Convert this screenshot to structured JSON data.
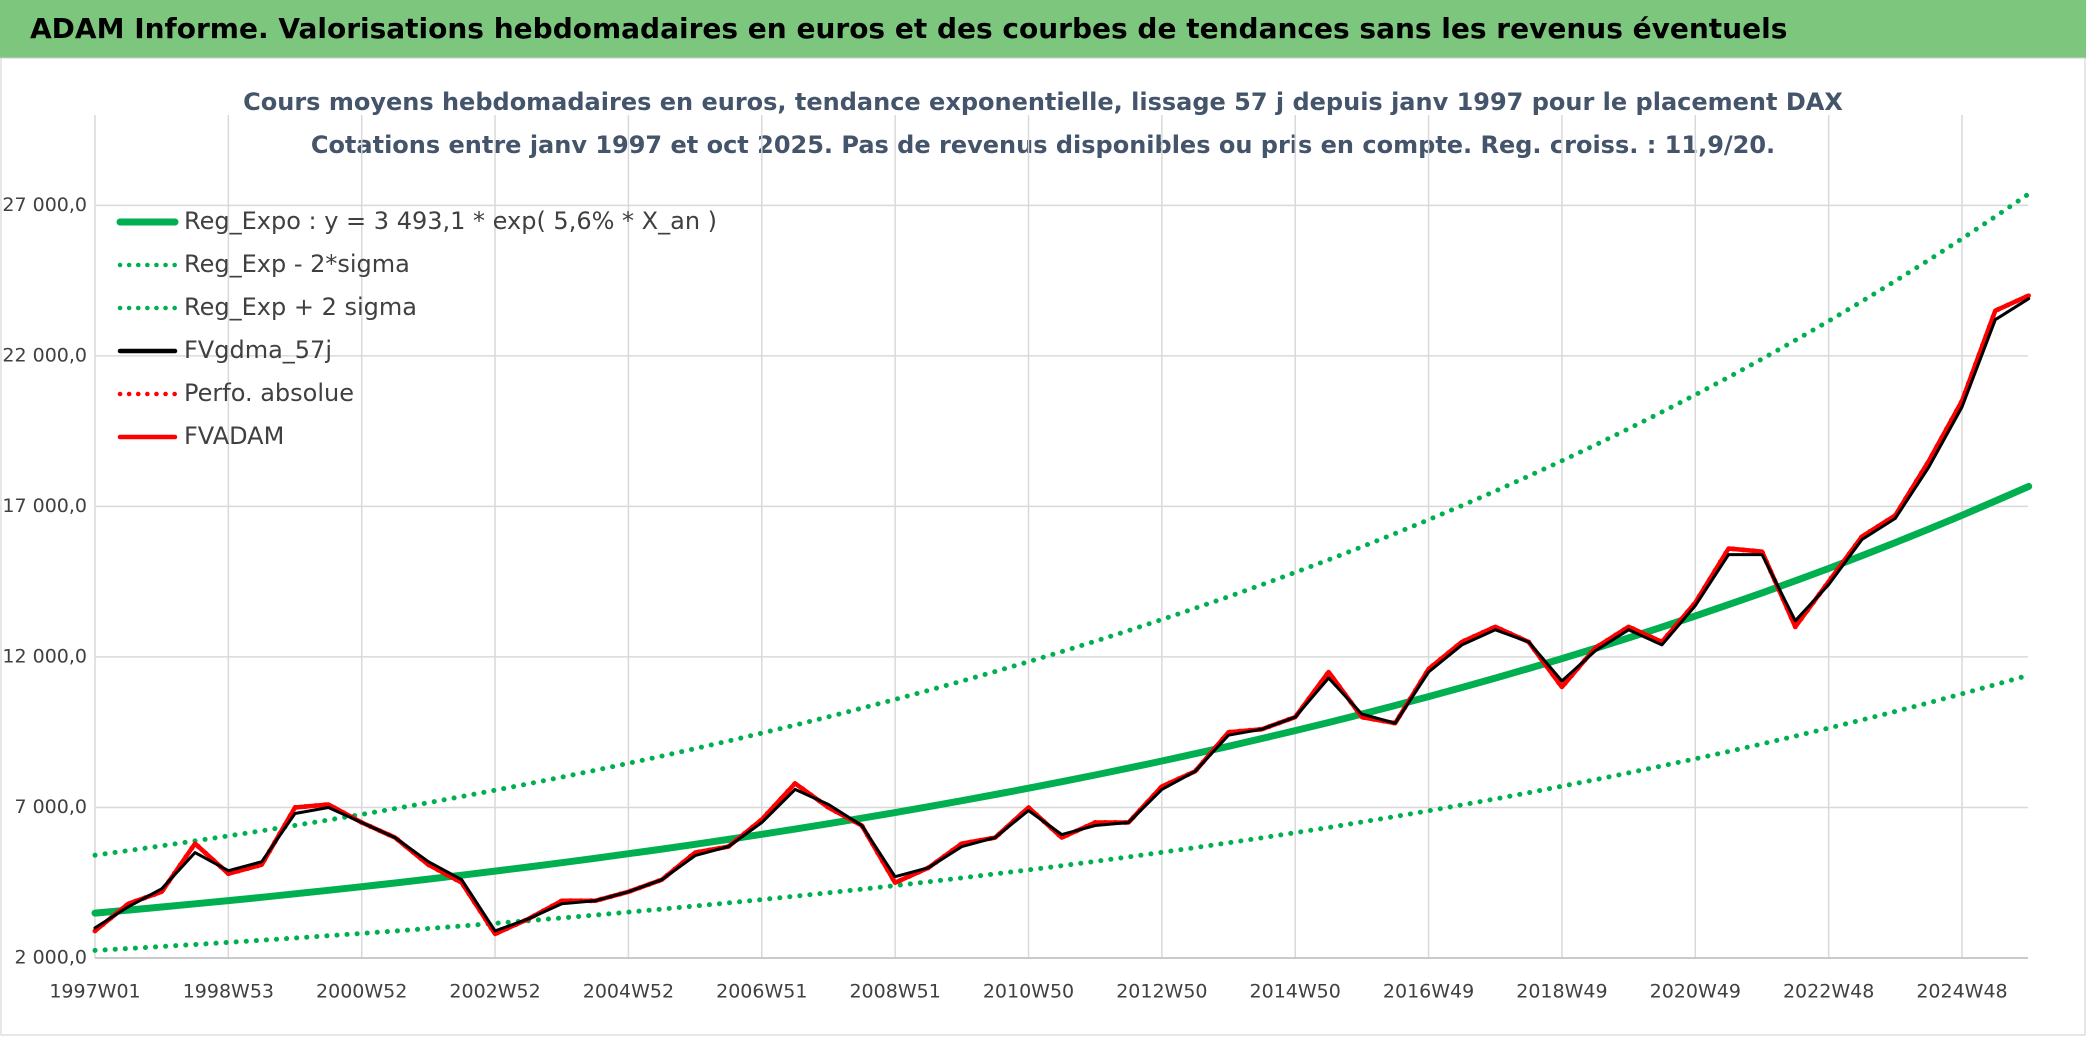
{
  "header": {
    "title": "ADAM Informe. Valorisations hebdomadaires en euros et des courbes de tendances sans les revenus éventuels"
  },
  "chart_data": {
    "type": "line",
    "title": "Cours moyens hebdomadaires en euros, tendance exponentielle, lissage 57 j depuis janv 1997 pour le placement DAX",
    "subtitle": "Cotations entre janv 1997 et oct 2025. Pas de revenus disponibles ou pris en compte. Reg. croiss. : 11,9/20.",
    "categories": [
      "1997W01",
      null,
      null,
      null,
      "1998W53",
      null,
      null,
      null,
      "2000W52",
      null,
      null,
      null,
      "2002W52",
      null,
      null,
      null,
      "2004W52",
      null,
      null,
      null,
      "2006W51",
      null,
      null,
      null,
      "2008W51",
      null,
      null,
      null,
      "2010W50",
      null,
      null,
      null,
      "2012W50",
      null,
      null,
      null,
      "2014W50",
      null,
      null,
      null,
      "2016W49",
      null,
      null,
      null,
      "2018W49",
      null,
      null,
      null,
      "2020W49",
      null,
      null,
      null,
      "2022W48",
      null,
      null,
      null,
      "2024W48",
      null,
      null
    ],
    "ylim": [
      2000,
      30000
    ],
    "yticks": [
      {
        "value": 2000,
        "label": "2 000,0"
      },
      {
        "value": 7000,
        "label": "7 000,0"
      },
      {
        "value": 12000,
        "label": "12 000,0"
      },
      {
        "value": 17000,
        "label": "17 000,0"
      },
      {
        "value": 22000,
        "label": "22 000,0"
      },
      {
        "value": 27000,
        "label": "27 000,0"
      }
    ],
    "grid": true,
    "legend": "upper-left",
    "series": [
      {
        "name": "Reg_Expo : y = 3 493,1 * exp( 5,6% *  X_an )",
        "color": "#00b050",
        "style": "solid",
        "values": [
          3493,
          3592,
          3694,
          3799,
          3906,
          4017,
          4131,
          4248,
          4368,
          4492,
          4619,
          4750,
          4885,
          5023,
          5166,
          5312,
          5463,
          5617,
          5777,
          5940,
          6109,
          6282,
          6460,
          6643,
          6831,
          7025,
          7224,
          7429,
          7639,
          7856,
          8078,
          8307,
          8543,
          8785,
          9033,
          9290,
          9553,
          9823,
          10102,
          10388,
          10682,
          10985,
          11296,
          11616,
          11946,
          12284,
          12632,
          12990,
          13358,
          13737,
          14126,
          14527,
          14938,
          15362,
          15797,
          16245,
          16705,
          17179,
          17665
        ]
      },
      {
        "name": "Reg_Exp - 2*sigma",
        "color": "#00b050",
        "style": "dotted",
        "values": [
          2253,
          2317,
          2383,
          2450,
          2519,
          2591,
          2664,
          2740,
          2817,
          2897,
          2979,
          3064,
          3151,
          3240,
          3332,
          3426,
          3524,
          3623,
          3726,
          3831,
          3940,
          4052,
          4167,
          4285,
          4406,
          4531,
          4659,
          4792,
          4927,
          5067,
          5210,
          5358,
          5510,
          5666,
          5826,
          5992,
          6162,
          6336,
          6516,
          6700,
          6890,
          7085,
          7286,
          7492,
          7705,
          7923,
          8148,
          8379,
          8616,
          8860,
          9111,
          9370,
          9635,
          9909,
          10189,
          10478,
          10775,
          11080,
          11394
        ]
      },
      {
        "name": "Reg_Exp + 2 sigma",
        "color": "#00b050",
        "style": "dotted",
        "values": [
          5414,
          5568,
          5726,
          5888,
          6054,
          6226,
          6403,
          6584,
          6770,
          6963,
          7159,
          7363,
          7572,
          7786,
          8007,
          8234,
          8468,
          8706,
          8954,
          9207,
          9469,
          9737,
          10013,
          10297,
          10588,
          10889,
          11197,
          11515,
          11840,
          12177,
          12521,
          12876,
          13242,
          13617,
          14001,
          14400,
          14807,
          15226,
          15658,
          16101,
          16557,
          17027,
          17509,
          18005,
          18516,
          19040,
          19580,
          20135,
          20705,
          21292,
          21895,
          22517,
          23154,
          23811,
          24485,
          25180,
          25893,
          26627,
          27381
        ]
      },
      {
        "name": "FVADAM",
        "color": "#ff0000",
        "style": "solid",
        "values": [
          2900,
          3800,
          4200,
          5800,
          4800,
          5100,
          7000,
          7100,
          6500,
          6000,
          5100,
          4500,
          2800,
          3300,
          3900,
          3900,
          4200,
          4600,
          5500,
          5700,
          6600,
          7800,
          7000,
          6400,
          4500,
          5000,
          5800,
          6000,
          7000,
          6000,
          6500,
          6500,
          7700,
          8200,
          9500,
          9600,
          10000,
          11500,
          10000,
          9800,
          11600,
          12500,
          13000,
          12500,
          11000,
          12300,
          13000,
          12500,
          13800,
          15600,
          15500,
          13000,
          14500,
          16000,
          16700,
          18500,
          20500,
          23500,
          24000
        ]
      },
      {
        "name": "Perfo. absolue",
        "color": "#ff0000",
        "style": "dotted",
        "values": [
          2900,
          3800,
          4200,
          5800,
          4800,
          5100,
          7000,
          7100,
          6500,
          6000,
          5100,
          4500,
          2800,
          3300,
          3900,
          3900,
          4200,
          4600,
          5500,
          5700,
          6600,
          7800,
          7000,
          6400,
          4500,
          5000,
          5800,
          6000,
          7000,
          6000,
          6500,
          6500,
          7700,
          8200,
          9500,
          9600,
          10000,
          11500,
          10000,
          9800,
          11600,
          12500,
          13000,
          12500,
          11000,
          12300,
          13000,
          12500,
          13800,
          15600,
          15500,
          13000,
          14500,
          16000,
          16700,
          18500,
          20500,
          23500,
          24000
        ]
      },
      {
        "name": "FVgdma_57j",
        "color": "#000000",
        "style": "solid",
        "values": [
          3000,
          3700,
          4300,
          5500,
          4900,
          5200,
          6800,
          7000,
          6500,
          6000,
          5200,
          4600,
          2900,
          3300,
          3800,
          3900,
          4200,
          4600,
          5400,
          5700,
          6500,
          7600,
          7100,
          6400,
          4700,
          5000,
          5700,
          6000,
          6900,
          6100,
          6400,
          6500,
          7600,
          8200,
          9400,
          9600,
          10000,
          11300,
          10100,
          9800,
          11500,
          12400,
          12900,
          12500,
          11200,
          12200,
          12900,
          12400,
          13700,
          15400,
          15400,
          13200,
          14400,
          15900,
          16600,
          18300,
          20300,
          23200,
          23900
        ]
      }
    ]
  }
}
